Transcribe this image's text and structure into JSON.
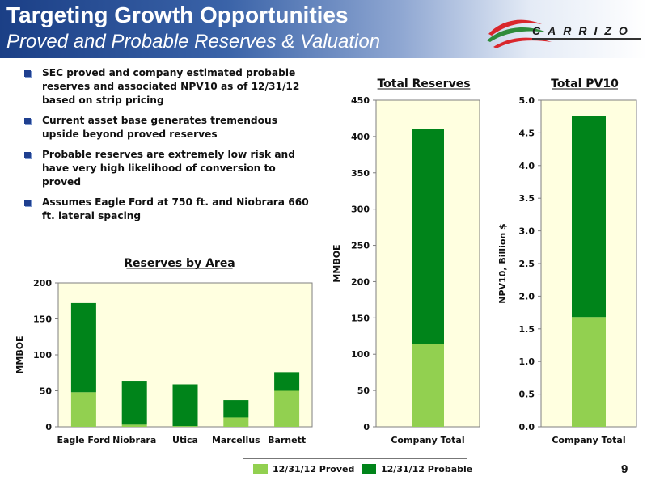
{
  "header": {
    "title": "Targeting Growth Opportunities",
    "subtitle": "Proved and Probable Reserves & Valuation",
    "logo_text": "CARRIZO"
  },
  "bullets": [
    "SEC proved and company estimated probable reserves and associated NPV10 as of 12/31/12 based on strip pricing",
    "Current asset base generates tremendous upside beyond proved reserves",
    "Probable reserves are extremely low risk and have very high likelihood of conversion to proved",
    "Assumes Eagle Ford at 750 ft. and Niobrara 660 ft. lateral spacing"
  ],
  "colors": {
    "proved": "#92d050",
    "probable": "#00841a",
    "plot_bg": "#ffffe0",
    "header_blue": "#1b3f86"
  },
  "chart_data": [
    {
      "id": "reserves-by-area",
      "type": "bar",
      "stacked": true,
      "title": "Reserves by Area",
      "xlabel": "",
      "ylabel": "MMBOE",
      "categories": [
        "Eagle Ford",
        "Niobrara",
        "Utica",
        "Marcellus",
        "Barnett"
      ],
      "series": [
        {
          "name": "12/31/12 Proved",
          "values": [
            48,
            3,
            1,
            13,
            50
          ]
        },
        {
          "name": "12/31/12 Probable",
          "values": [
            124,
            61,
            58,
            24,
            26
          ]
        }
      ],
      "ylim": [
        0,
        200
      ],
      "yticks": [
        0,
        50,
        100,
        150,
        200
      ],
      "ytick_labels": [
        "0",
        "50",
        "100",
        "150",
        "200"
      ],
      "grid": false
    },
    {
      "id": "total-reserves",
      "type": "bar",
      "stacked": true,
      "title": "Total Reserves",
      "xlabel": "",
      "ylabel": "MMBOE",
      "categories": [
        "Company Total"
      ],
      "series": [
        {
          "name": "12/31/12 Proved",
          "values": [
            114
          ]
        },
        {
          "name": "12/31/12 Probable",
          "values": [
            296
          ]
        }
      ],
      "ylim": [
        0,
        450
      ],
      "yticks": [
        0,
        50,
        100,
        150,
        200,
        250,
        300,
        350,
        400,
        450
      ],
      "ytick_labels": [
        "0",
        "50",
        "100",
        "150",
        "200",
        "250",
        "300",
        "350",
        "400",
        "450"
      ],
      "grid": false
    },
    {
      "id": "total-pv10",
      "type": "bar",
      "stacked": true,
      "title": "Total PV10",
      "xlabel": "",
      "ylabel": "NPV10, Billion $",
      "categories": [
        "Company Total"
      ],
      "series": [
        {
          "name": "12/31/12 Proved",
          "values": [
            1.68
          ]
        },
        {
          "name": "12/31/12 Probable",
          "values": [
            3.08
          ]
        }
      ],
      "ylim": [
        0,
        5
      ],
      "yticks": [
        0,
        0.5,
        1.0,
        1.5,
        2.0,
        2.5,
        3.0,
        3.5,
        4.0,
        4.5,
        5.0
      ],
      "ytick_labels": [
        "0.0",
        "0.5",
        "1.0",
        "1.5",
        "2.0",
        "2.5",
        "3.0",
        "3.5",
        "4.0",
        "4.5",
        "5.0"
      ],
      "grid": false
    }
  ],
  "legend": {
    "entries": [
      {
        "label": "12/31/12 Proved",
        "color": "#92d050"
      },
      {
        "label": "12/31/12 Probable",
        "color": "#00841a"
      }
    ],
    "placement": "bottom"
  },
  "page_number": "9"
}
